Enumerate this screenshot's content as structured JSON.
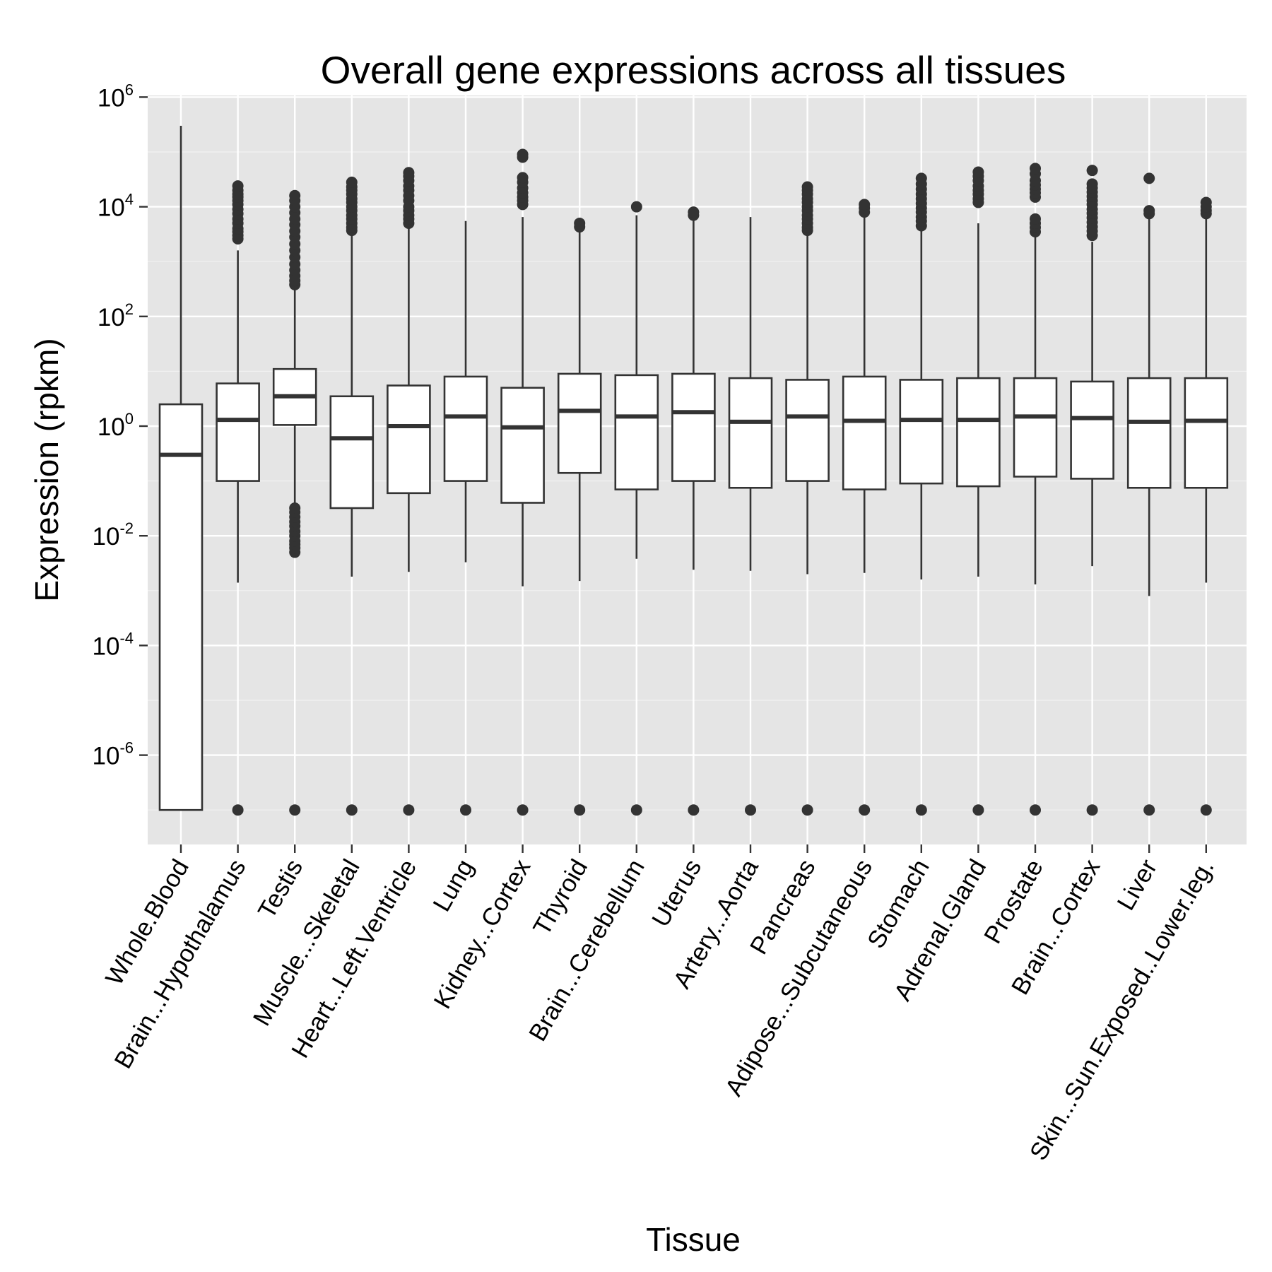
{
  "chart_data": {
    "type": "boxplot",
    "title": "Overall gene expressions across all tissues",
    "xlabel": "Tissue",
    "ylabel": "Expression (rpkm)",
    "y_scale": "log10",
    "ylim": [
      1e-08,
      1000000.0
    ],
    "y_ticks": [
      {
        "base": "10",
        "exp": "-6",
        "value": 1e-06
      },
      {
        "base": "10",
        "exp": "-4",
        "value": 0.0001
      },
      {
        "base": "10",
        "exp": "-2",
        "value": 0.01
      },
      {
        "base": "10",
        "exp": "0",
        "value": 1
      },
      {
        "base": "10",
        "exp": "2",
        "value": 100
      },
      {
        "base": "10",
        "exp": "4",
        "value": 10000
      },
      {
        "base": "10",
        "exp": "6",
        "value": 1000000
      }
    ],
    "grid": true,
    "legend": "none",
    "colors": {
      "panel": "#e5e5e5",
      "grid_major": "#ffffff",
      "grid_minor": "#f2f2f2",
      "box_fill": "#ffffff",
      "box_stroke": "#333333"
    },
    "categories": [
      {
        "label": "Whole.Blood",
        "q1": 1e-07,
        "median": 0.3,
        "q3": 2.5,
        "whisker_low": 1e-07,
        "whisker_high": 300000,
        "outliers": []
      },
      {
        "label": "Brain...Hypothalamus",
        "q1": 0.1,
        "median": 1.3,
        "q3": 6,
        "whisker_low": 0.0014,
        "whisker_high": 1600,
        "outliers": [
          1e-07,
          2600,
          3000,
          3500,
          4000,
          5000,
          6000,
          7500,
          9000,
          11000,
          13000,
          15000,
          17000,
          20000,
          24000
        ]
      },
      {
        "label": "Testis",
        "q1": 1.05,
        "median": 3.5,
        "q3": 11,
        "whisker_low": 0.035,
        "whisker_high": 350,
        "outliers": [
          1e-07,
          0.005,
          0.006,
          0.007,
          0.008,
          0.01,
          0.012,
          0.015,
          0.018,
          0.022,
          0.027,
          0.032,
          380,
          450,
          550,
          700,
          900,
          1200,
          1600,
          2100,
          2800,
          3600,
          4700,
          6000,
          7800,
          10000,
          13000,
          16000
        ]
      },
      {
        "label": "Muscle...Skeletal",
        "q1": 0.032,
        "median": 0.6,
        "q3": 3.5,
        "whisker_low": 0.0018,
        "whisker_high": 3500,
        "outliers": [
          1e-07,
          3700,
          4200,
          5000,
          6000,
          7000,
          8500,
          10000,
          12000,
          14000,
          17000,
          20000,
          23000,
          28000
        ]
      },
      {
        "label": "Heart...Left.Ventricle",
        "q1": 0.06,
        "median": 1.0,
        "q3": 5.5,
        "whisker_low": 0.0022,
        "whisker_high": 4000,
        "outliers": [
          1e-07,
          5000,
          6000,
          7000,
          8500,
          10000,
          13000,
          16000,
          20000,
          24000,
          30000,
          36000,
          42000
        ]
      },
      {
        "label": "Lung",
        "q1": 0.1,
        "median": 1.5,
        "q3": 8,
        "whisker_low": 0.0033,
        "whisker_high": 5500,
        "outliers": [
          1e-07
        ]
      },
      {
        "label": "Kidney...Cortex",
        "q1": 0.04,
        "median": 0.95,
        "q3": 5,
        "whisker_low": 0.0012,
        "whisker_high": 6500,
        "outliers": [
          1e-07,
          11000,
          13000,
          15000,
          18000,
          22000,
          28000,
          34000,
          80000,
          90000
        ]
      },
      {
        "label": "Thyroid",
        "q1": 0.14,
        "median": 1.9,
        "q3": 9,
        "whisker_low": 0.0015,
        "whisker_high": 3500,
        "outliers": [
          1e-07,
          4300,
          5000
        ]
      },
      {
        "label": "Brain...Cerebellum",
        "q1": 0.07,
        "median": 1.5,
        "q3": 8.5,
        "whisker_low": 0.0038,
        "whisker_high": 7000,
        "outliers": [
          1e-07,
          10000
        ]
      },
      {
        "label": "Uterus",
        "q1": 0.1,
        "median": 1.8,
        "q3": 9,
        "whisker_low": 0.0024,
        "whisker_high": 6000,
        "outliers": [
          1e-07,
          7000,
          8000
        ]
      },
      {
        "label": "Artery...Aorta",
        "q1": 0.075,
        "median": 1.2,
        "q3": 7.5,
        "whisker_low": 0.0023,
        "whisker_high": 6500,
        "outliers": [
          1e-07
        ]
      },
      {
        "label": "Pancreas",
        "q1": 0.1,
        "median": 1.5,
        "q3": 7,
        "whisker_low": 0.002,
        "whisker_high": 3500,
        "outliers": [
          1e-07,
          3700,
          4200,
          5000,
          6000,
          7000,
          8500,
          10000,
          12000,
          14000,
          17000,
          20000,
          23000
        ]
      },
      {
        "label": "Adipose...Subcutaneous",
        "q1": 0.07,
        "median": 1.25,
        "q3": 8,
        "whisker_low": 0.0021,
        "whisker_high": 7000,
        "outliers": [
          1e-07,
          8000,
          9500,
          11000
        ]
      },
      {
        "label": "Stomach",
        "q1": 0.09,
        "median": 1.3,
        "q3": 7,
        "whisker_low": 0.0016,
        "whisker_high": 4000,
        "outliers": [
          1e-07,
          4500,
          5500,
          6500,
          8000,
          9500,
          11500,
          14000,
          17000,
          21000,
          26000,
          33000
        ]
      },
      {
        "label": "Adrenal.Gland",
        "q1": 0.08,
        "median": 1.3,
        "q3": 7.5,
        "whisker_low": 0.0018,
        "whisker_high": 5000,
        "outliers": [
          1e-07,
          12000,
          14000,
          17000,
          20000,
          24000,
          30000,
          36000,
          43000
        ]
      },
      {
        "label": "Prostate",
        "q1": 0.12,
        "median": 1.5,
        "q3": 7.5,
        "whisker_low": 0.0013,
        "whisker_high": 2800,
        "outliers": [
          1e-07,
          3500,
          4200,
          5000,
          6000,
          15000,
          18000,
          21000,
          25000,
          30000,
          40000,
          50000
        ]
      },
      {
        "label": "Brain...Cortex",
        "q1": 0.11,
        "median": 1.4,
        "q3": 6.5,
        "whisker_low": 0.0028,
        "whisker_high": 2300,
        "outliers": [
          1e-07,
          3000,
          3600,
          4300,
          5200,
          6300,
          7600,
          9000,
          11000,
          13000,
          15500,
          18500,
          22000,
          26000,
          46000
        ]
      },
      {
        "label": "Liver",
        "q1": 0.075,
        "median": 1.2,
        "q3": 7.5,
        "whisker_low": 0.0008,
        "whisker_high": 6500,
        "outliers": [
          1e-07,
          7500,
          8500,
          33000
        ]
      },
      {
        "label": "Skin...Sun.Exposed..Lower.leg.",
        "q1": 0.075,
        "median": 1.25,
        "q3": 7.5,
        "whisker_low": 0.0014,
        "whisker_high": 6500,
        "outliers": [
          1e-07,
          7500,
          8500,
          10000,
          12000
        ]
      }
    ]
  }
}
